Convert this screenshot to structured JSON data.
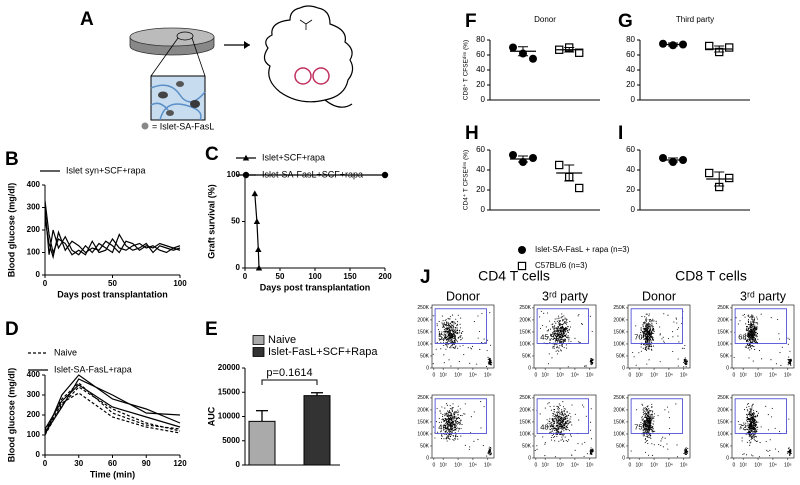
{
  "panel_a": {
    "letter": "A",
    "legend": "= Islet-SA-FasL"
  },
  "chart_data": [
    {
      "type": "line",
      "letter": "B",
      "xlabel": "Days post transplantation",
      "ylabel": "Blood glucose (mg/dl)",
      "x": [
        0,
        3,
        6,
        10,
        15,
        20,
        25,
        30,
        35,
        40,
        45,
        50,
        55,
        60,
        65,
        70,
        75,
        80,
        85,
        90,
        95,
        100
      ],
      "series": [
        {
          "name": "Islet syn+SCF+rapa",
          "color": "#000000",
          "values": [
            330,
            180,
            100,
            160,
            140,
            90,
            110,
            90,
            150,
            100,
            110,
            160,
            120,
            110,
            130,
            140,
            120,
            130,
            110,
            100,
            120,
            130
          ]
        },
        {
          "color": "#000000",
          "values": [
            300,
            90,
            200,
            120,
            170,
            110,
            90,
            130,
            100,
            140,
            120,
            100,
            180,
            130,
            110,
            120,
            140,
            100,
            130,
            120,
            110,
            120
          ]
        },
        {
          "color": "#000000",
          "values": [
            250,
            140,
            80,
            190,
            110,
            150,
            130,
            100,
            120,
            110,
            150,
            130,
            100,
            150,
            140,
            110,
            130,
            120,
            140,
            130,
            120,
            110
          ]
        }
      ],
      "xlim": [
        0,
        100
      ],
      "xticks": [
        0,
        50,
        100
      ],
      "ylim": [
        0,
        400
      ],
      "yticks": [
        0,
        100,
        200,
        300,
        400
      ]
    },
    {
      "type": "line",
      "letter": "C",
      "xlabel": "Days post transplantation",
      "ylabel": "Graft survival (%)",
      "series": [
        {
          "name": "Islet+SCF+rapa",
          "color": "#000000",
          "marker": "triangle",
          "x": [
            14,
            17,
            19,
            20
          ],
          "values": [
            80,
            50,
            20,
            0
          ]
        },
        {
          "name": "Islet-SA-FasL+SCF+rapa",
          "color": "#000000",
          "marker": "circle",
          "x": [
            0,
            200
          ],
          "values": [
            100,
            100
          ]
        }
      ],
      "xlim": [
        0,
        200
      ],
      "xticks": [
        0,
        50,
        100,
        150,
        200
      ],
      "ylim": [
        0,
        100
      ],
      "yticks": [
        0,
        50,
        100
      ]
    },
    {
      "type": "line",
      "letter": "D",
      "xlabel": "Time (min)",
      "ylabel": "Blood glucose (mg/dl)",
      "x": [
        0,
        15,
        30,
        60,
        90,
        120
      ],
      "series": [
        {
          "name": "Naive",
          "color": "#000000",
          "dash": true,
          "values": [
            100,
            250,
            340,
            230,
            160,
            120
          ]
        },
        {
          "color": "#000000",
          "dash": true,
          "values": [
            110,
            260,
            310,
            190,
            140,
            110
          ]
        },
        {
          "color": "#000000",
          "dash": true,
          "values": [
            120,
            280,
            360,
            210,
            150,
            130
          ]
        },
        {
          "name": "Islet-SA-FasL+rapa",
          "color": "#000000",
          "values": [
            110,
            240,
            380,
            300,
            210,
            200
          ]
        },
        {
          "color": "#000000",
          "values": [
            100,
            300,
            400,
            280,
            230,
            160
          ]
        },
        {
          "color": "#000000",
          "values": [
            130,
            270,
            350,
            240,
            190,
            140
          ]
        }
      ],
      "xlim": [
        0,
        120
      ],
      "xticks": [
        0,
        30,
        60,
        90,
        120
      ],
      "ylim": [
        0,
        400
      ],
      "yticks": [
        0,
        100,
        200,
        300,
        400
      ]
    },
    {
      "type": "bar",
      "letter": "E",
      "ylabel": "AUC",
      "annotation": "p=0.1614",
      "categories": [
        "Naive",
        "Islet-FasL+SCF+Rapa"
      ],
      "values": [
        9000,
        14300
      ],
      "errors": [
        2200,
        600
      ],
      "colors": [
        "#aaaaaa",
        "#333333"
      ],
      "ylim": [
        0,
        20000
      ],
      "yticks": [
        0,
        5000,
        10000,
        15000,
        20000
      ]
    },
    {
      "type": "dotplot",
      "series": [
        {
          "name": "Islet-SA-FasL + rapa (n=3)",
          "marker": "circle"
        },
        {
          "name": "C57BL/6 (n=3)",
          "marker": "square"
        }
      ],
      "panels": [
        {
          "letter": "F",
          "title": "Donor",
          "ylabel": "CD8⁺ T CFSEᵈⁱᵐ (%)",
          "ylim": [
            0,
            80
          ],
          "yticks": [
            0,
            20,
            40,
            60,
            80
          ],
          "groups": [
            {
              "points": [
                70,
                62,
                55
              ],
              "mean": 65,
              "sem": 6
            },
            {
              "points": [
                67,
                70,
                63
              ],
              "mean": 67,
              "sem": 3
            }
          ]
        },
        {
          "letter": "G",
          "title": "Third party",
          "ylim": [
            0,
            80
          ],
          "yticks": [
            0,
            20,
            40,
            60,
            80
          ],
          "groups": [
            {
              "points": [
                75,
                73,
                74
              ],
              "mean": 74,
              "sem": 2
            },
            {
              "points": [
                72,
                64,
                70
              ],
              "mean": 68,
              "sem": 4
            }
          ]
        },
        {
          "letter": "H",
          "ylabel": "CD4⁺ T CFSEᵈⁱᵐ (%)",
          "ylim": [
            0,
            60
          ],
          "yticks": [
            0,
            20,
            40,
            60
          ],
          "groups": [
            {
              "points": [
                55,
                48,
                52
              ],
              "mean": 51,
              "sem": 3
            },
            {
              "points": [
                45,
                33,
                22
              ],
              "mean": 37,
              "sem": 8
            }
          ]
        },
        {
          "letter": "I",
          "ylim": [
            0,
            60
          ],
          "yticks": [
            0,
            20,
            40,
            60
          ],
          "groups": [
            {
              "points": [
                52,
                48,
                50
              ],
              "mean": 50,
              "sem": 2
            },
            {
              "points": [
                37,
                23,
                32
              ],
              "mean": 31,
              "sem": 7
            }
          ]
        }
      ]
    }
  ],
  "flow": {
    "letter": "J",
    "groups": [
      {
        "title": "CD4 T cells",
        "columns": [
          "Donor",
          "3ʳᵈ party"
        ]
      },
      {
        "title": "CD8 T cells",
        "columns": [
          "Donor",
          "3ʳᵈ party"
        ]
      }
    ],
    "percentages": [
      [
        53.6,
        45.5,
        70.5,
        68.2
      ],
      [
        49.1,
        48.3,
        75.5,
        72.8
      ]
    ],
    "yticks": [
      0,
      {
        "value": 50000,
        "label": "50K"
      },
      {
        "value": 100000,
        "label": "100K"
      },
      {
        "value": 150000,
        "label": "150K"
      },
      {
        "value": 200000,
        "label": "200K"
      },
      {
        "value": 250000,
        "label": "250K"
      }
    ],
    "ylim": [
      0,
      262144
    ],
    "xticks": [
      0,
      {
        "value": 100,
        "label": "10²"
      },
      {
        "value": 1000,
        "label": "10³"
      },
      {
        "value": 10000,
        "label": "10⁴"
      },
      {
        "value": 100000,
        "label": "10⁵"
      }
    ]
  }
}
